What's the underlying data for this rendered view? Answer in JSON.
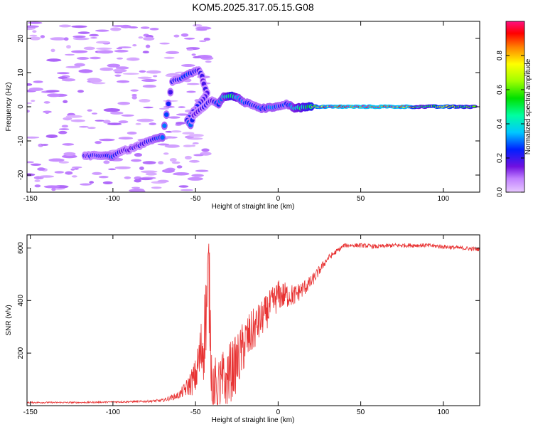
{
  "chart_data": [
    {
      "type": "heatmap",
      "title": "KOM5.2025.317.05.15.G08",
      "xlabel": "Height of straight line (km)",
      "ylabel": "Frequency (Hz)",
      "xlim": [
        -152,
        122
      ],
      "ylim": [
        -25,
        25
      ],
      "xticks": [
        -150,
        -100,
        -50,
        0,
        50,
        100
      ],
      "yticks": [
        -20,
        -10,
        0,
        10,
        20
      ],
      "colorbar": {
        "label": "Normalized spectral amplitude",
        "range": [
          0,
          1
        ],
        "ticks": [
          "0.0",
          "0.2",
          "0.4",
          "0.6",
          "0.8"
        ],
        "tick_values": [
          0,
          0.2,
          0.4,
          0.6,
          0.8
        ]
      },
      "ridge": [
        {
          "x": -117,
          "f": -14.5,
          "a": 0.2
        },
        {
          "x": -108,
          "f": -14.2,
          "a": 0.22
        },
        {
          "x": -100,
          "f": -14.5,
          "a": 0.28
        },
        {
          "x": -95,
          "f": -13.0,
          "a": 0.18
        },
        {
          "x": -90,
          "f": -12.5,
          "a": 0.18
        },
        {
          "x": -85,
          "f": -11.5,
          "a": 0.2
        },
        {
          "x": -80,
          "f": -10.5,
          "a": 0.22
        },
        {
          "x": -75,
          "f": -9.5,
          "a": 0.26
        },
        {
          "x": -70,
          "f": -9.0,
          "a": 0.3
        },
        {
          "x": -64,
          "f": 7.5,
          "a": 0.22
        },
        {
          "x": -60,
          "f": 8.0,
          "a": 0.22
        },
        {
          "x": -56,
          "f": 9.0,
          "a": 0.28
        },
        {
          "x": -52,
          "f": 10.0,
          "a": 0.26
        },
        {
          "x": -48,
          "f": 10.5,
          "a": 0.22
        },
        {
          "x": -46,
          "f": 9.0,
          "a": 0.18
        },
        {
          "x": -45,
          "f": 6.5,
          "a": 0.18
        },
        {
          "x": -43,
          "f": 4.0,
          "a": 0.2
        },
        {
          "x": -55,
          "f": -4.0,
          "a": 0.24
        },
        {
          "x": -53,
          "f": -5.5,
          "a": 0.28
        },
        {
          "x": -51,
          "f": -2.5,
          "a": 0.18
        },
        {
          "x": -40,
          "f": 2.0,
          "a": 0.2
        },
        {
          "x": -36,
          "f": 0.8,
          "a": 0.3
        },
        {
          "x": -33,
          "f": 3.0,
          "a": 0.35
        },
        {
          "x": -28,
          "f": 3.0,
          "a": 0.6
        },
        {
          "x": -24,
          "f": 2.5,
          "a": 0.35
        },
        {
          "x": -20,
          "f": 1.2,
          "a": 0.28
        },
        {
          "x": -15,
          "f": 0.5,
          "a": 0.25
        },
        {
          "x": -10,
          "f": -0.5,
          "a": 0.28
        },
        {
          "x": -5,
          "f": -0.3,
          "a": 0.3
        },
        {
          "x": 0,
          "f": 0.2,
          "a": 0.3
        },
        {
          "x": 5,
          "f": 0.8,
          "a": 0.25
        },
        {
          "x": 10,
          "f": -0.3,
          "a": 0.4
        },
        {
          "x": 15,
          "f": -0.2,
          "a": 0.5
        },
        {
          "x": 20,
          "f": 0.0,
          "a": 0.6
        },
        {
          "x": 25,
          "f": 0.0,
          "a": 0.9
        },
        {
          "x": 40,
          "f": 0.0,
          "a": 1.0
        },
        {
          "x": 60,
          "f": 0.0,
          "a": 1.0
        },
        {
          "x": 80,
          "f": 0.0,
          "a": 0.95
        },
        {
          "x": 85,
          "f": 0.0,
          "a": 0.45
        },
        {
          "x": 90,
          "f": 0.0,
          "a": 0.5
        },
        {
          "x": 100,
          "f": 0.0,
          "a": 0.85
        },
        {
          "x": 110,
          "f": 0.0,
          "a": 0.6
        },
        {
          "x": 120,
          "f": 0.0,
          "a": 0.55
        }
      ]
    },
    {
      "type": "line",
      "xlabel": "Height of straight line (km)",
      "ylabel": "SNR (v/v)",
      "xlim": [
        -152,
        122
      ],
      "ylim": [
        0,
        650
      ],
      "xticks": [
        -150,
        -100,
        -50,
        0,
        50,
        100
      ],
      "yticks": [
        200,
        400,
        600
      ],
      "color": "#e83232",
      "series": [
        {
          "name": "SNR",
          "x": [
            -152,
            -140,
            -120,
            -100,
            -80,
            -70,
            -60,
            -55,
            -50,
            -45,
            -42,
            -40,
            -35,
            -30,
            -25,
            -20,
            -10,
            0,
            10,
            20,
            30,
            40,
            50,
            60,
            70,
            80,
            90,
            100,
            110,
            122
          ],
          "y": [
            12,
            12,
            12,
            14,
            16,
            20,
            40,
            70,
            110,
            250,
            500,
            80,
            60,
            120,
            160,
            240,
            330,
            420,
            420,
            470,
            560,
            610,
            610,
            605,
            610,
            610,
            610,
            605,
            600,
            595
          ],
          "noise": [
            3,
            3,
            3,
            3,
            4,
            6,
            14,
            35,
            70,
            160,
            200,
            110,
            140,
            120,
            110,
            100,
            70,
            60,
            40,
            25,
            12,
            8,
            8,
            8,
            8,
            8,
            8,
            8,
            8,
            8
          ]
        }
      ]
    }
  ]
}
